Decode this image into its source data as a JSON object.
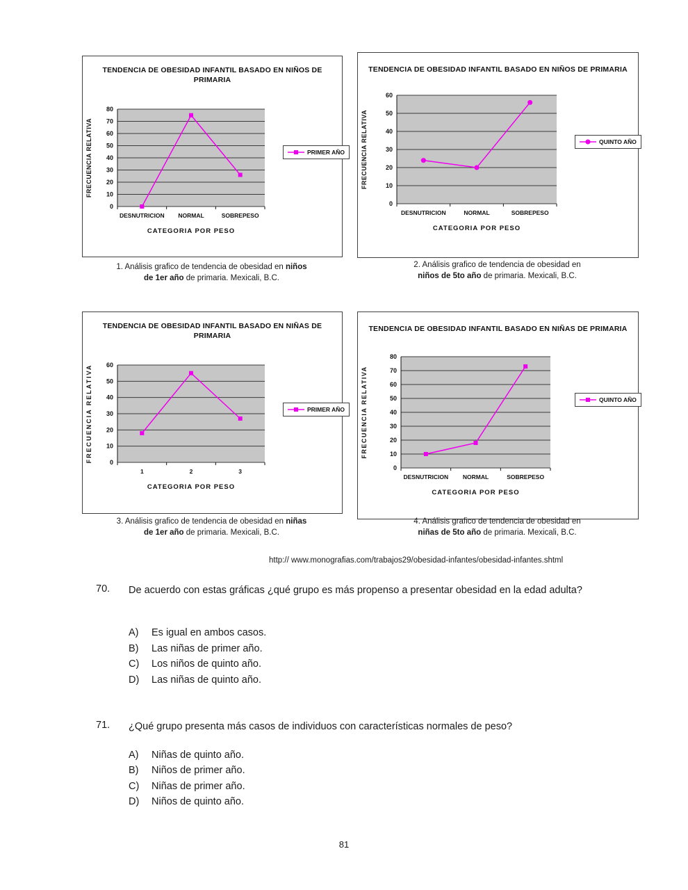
{
  "page": {
    "number": "81"
  },
  "source_url": "http:// www.monografias.com/trabajos29/obesidad-infantes/obesidad-infantes.shtml",
  "colors": {
    "line": "#EE00EE",
    "plot_bg": "#C6C6C6",
    "grid": "#3a3a3a",
    "axis": "#111111"
  },
  "chart_data": [
    {
      "type": "line",
      "title": "TENDENCIA DE OBESIDAD INFANTIL BASADO EN NIÑOS DE PRIMARIA",
      "categories": [
        "DESNUTRICION",
        "NORMAL",
        "SOBREPESO"
      ],
      "values": [
        0,
        75,
        26
      ],
      "series_name": "PRIMER AÑO",
      "marker": "square",
      "xlabel": "CATEGORIA POR PESO",
      "ylabel": "FRECUENCIA RELATIVA",
      "ylim": [
        0,
        80
      ],
      "ytick_step": 10,
      "grid": true,
      "legend_position": "right",
      "caption": {
        "l1n": "1. Análisis grafico de tendencia de obesidad en ",
        "l1b": "niños",
        "l2b": "de 1er año",
        "l2n": " de primaria. Mexicali, B.C."
      }
    },
    {
      "type": "line",
      "title": "TENDENCIA DE OBESIDAD INFANTIL BASADO EN NIÑOS DE PRIMARIA",
      "categories": [
        "DESNUTRICION",
        "NORMAL",
        "SOBREPESO"
      ],
      "values": [
        24,
        20,
        56
      ],
      "series_name": "QUINTO AÑO",
      "marker": "circle",
      "xlabel": "CATEGORIA POR PESO",
      "ylabel": "FRECUENCIA RELATIVA",
      "ylim": [
        0,
        60
      ],
      "ytick_step": 10,
      "grid": true,
      "legend_position": "right",
      "caption": {
        "l1n": "2. Análisis grafico de tendencia de obesidad en ",
        "l1b": "",
        "l2b": "niños de 5to año",
        "l2n": " de primaria. Mexicali, B.C."
      }
    },
    {
      "type": "line",
      "title": "TENDENCIA DE OBESIDAD INFANTIL BASADO EN NIÑAS DE PRIMARIA",
      "categories": [
        "1",
        "2",
        "3"
      ],
      "values": [
        18,
        55,
        27
      ],
      "series_name": "PRIMER AÑO",
      "marker": "square",
      "xlabel": "CATEGORIA POR PESO",
      "ylabel": "FRECUENCIA RELATIVA",
      "ylim": [
        0,
        60
      ],
      "ytick_step": 10,
      "grid": true,
      "legend_position": "right",
      "caption": {
        "l1n": "3. Análisis grafico de tendencia de obesidad en ",
        "l1b": "niñas",
        "l2b": "de 1er año",
        "l2n": " de primaria. Mexicali, B.C."
      }
    },
    {
      "type": "line",
      "title": "TENDENCIA DE OBESIDAD INFANTIL BASADO EN NIÑAS DE PRIMARIA",
      "categories": [
        "DESNUTRICION",
        "NORMAL",
        "SOBREPESO"
      ],
      "values": [
        10,
        18,
        73
      ],
      "series_name": "QUINTO AÑO",
      "marker": "square",
      "xlabel": "CATEGORIA POR PESO",
      "ylabel": "FRECUENCIA RELATIVA",
      "ylim": [
        0,
        80
      ],
      "ytick_step": 10,
      "grid": true,
      "legend_position": "right",
      "caption": {
        "l1n": "4. Análisis grafico de tendencia de obesidad en ",
        "l1b": "",
        "l2b": "niñas de 5to año",
        "l2n": " de primaria. Mexicali, B.C."
      }
    }
  ],
  "questions": [
    {
      "number": "70.",
      "text": "De acuerdo con estas gráficas ¿qué grupo es más propenso a presentar obesidad en la edad adulta?",
      "options": [
        {
          "letter": "A)",
          "text": "Es igual en ambos casos."
        },
        {
          "letter": "B)",
          "text": "Las niñas de primer año."
        },
        {
          "letter": "C)",
          "text": "Los niños de quinto año."
        },
        {
          "letter": "D)",
          "text": "Las niñas de quinto año."
        }
      ]
    },
    {
      "number": "71.",
      "text": "¿Qué grupo presenta más casos de individuos con características normales de peso?",
      "options": [
        {
          "letter": "A)",
          "text": "Niñas de quinto año."
        },
        {
          "letter": "B)",
          "text": "Niños de primer año."
        },
        {
          "letter": "C)",
          "text": "Niñas de primer año."
        },
        {
          "letter": "D)",
          "text": "Niños de quinto año."
        }
      ]
    }
  ]
}
